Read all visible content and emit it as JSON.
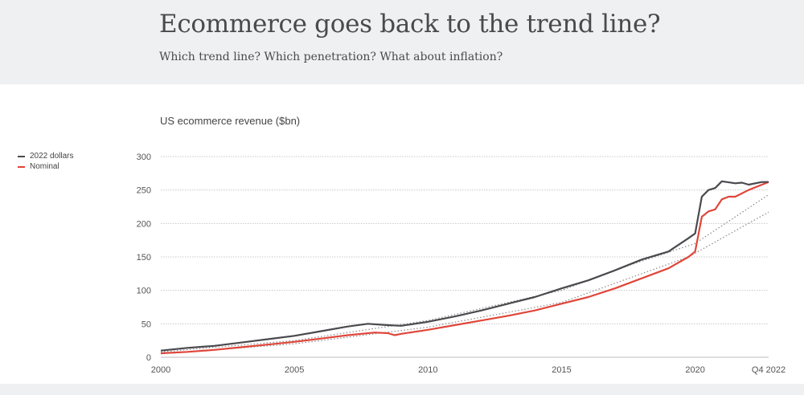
{
  "header": {
    "title": "Ecommerce goes back to the trend line?",
    "subtitle": "Which trend line? Which penetration? What about inflation?"
  },
  "chart_data": {
    "type": "line",
    "title": "US ecommerce revenue ($bn)",
    "xlabel": "",
    "ylabel": "",
    "ylim": [
      0,
      300
    ],
    "xlim": [
      2000,
      2022.75
    ],
    "yticks": [
      0,
      50,
      100,
      150,
      200,
      250,
      300
    ],
    "xticks": [
      {
        "v": 2000,
        "label": "2000"
      },
      {
        "v": 2005,
        "label": "2005"
      },
      {
        "v": 2010,
        "label": "2010"
      },
      {
        "v": 2015,
        "label": "2015"
      },
      {
        "v": 2020,
        "label": "2020"
      },
      {
        "v": 2022.75,
        "label": "Q4 2022"
      }
    ],
    "grid": true,
    "legend_position": "left",
    "series": [
      {
        "name": "2022 dollars",
        "color": "#4a4a4e",
        "x": [
          2000,
          2001,
          2002,
          2003,
          2004,
          2005,
          2006,
          2007,
          2007.75,
          2008.5,
          2009,
          2010,
          2011,
          2012,
          2013,
          2014,
          2015,
          2016,
          2017,
          2018,
          2019,
          2019.75,
          2020,
          2020.25,
          2020.5,
          2020.75,
          2021,
          2021.5,
          2021.75,
          2022,
          2022.5,
          2022.75
        ],
        "y": [
          10,
          14,
          17,
          22,
          27,
          32,
          39,
          46,
          50,
          48,
          47,
          53,
          61,
          70,
          80,
          90,
          103,
          115,
          130,
          146,
          158,
          178,
          185,
          240,
          250,
          253,
          263,
          260,
          261,
          258,
          262,
          262
        ]
      },
      {
        "name": "Nominal",
        "color": "#e0463a",
        "x": [
          2000,
          2001,
          2002,
          2003,
          2004,
          2005,
          2006,
          2007,
          2008,
          2008.5,
          2008.75,
          2009,
          2010,
          2011,
          2012,
          2013,
          2014,
          2015,
          2016,
          2017,
          2018,
          2019,
          2019.75,
          2020,
          2020.25,
          2020.5,
          2020.75,
          2021,
          2021.25,
          2021.5,
          2022,
          2022.5,
          2022.75
        ],
        "y": [
          6,
          8,
          11,
          15,
          19,
          23,
          28,
          33,
          37,
          36,
          33,
          35,
          41,
          48,
          55,
          62,
          70,
          80,
          90,
          103,
          118,
          133,
          150,
          158,
          210,
          218,
          221,
          236,
          240,
          240,
          250,
          258,
          262
        ]
      },
      {
        "style": "dotted",
        "color": "#888888",
        "x": [
          2000,
          2005,
          2010,
          2015,
          2017.5,
          2020,
          2022.75
        ],
        "y": [
          8,
          25,
          55,
          100,
          137,
          170,
          243
        ]
      },
      {
        "style": "dotted",
        "color": "#888888",
        "x": [
          2000,
          2005,
          2010,
          2015,
          2019.75,
          2022.75
        ],
        "y": [
          5,
          20,
          45,
          82,
          150,
          217
        ]
      }
    ]
  }
}
